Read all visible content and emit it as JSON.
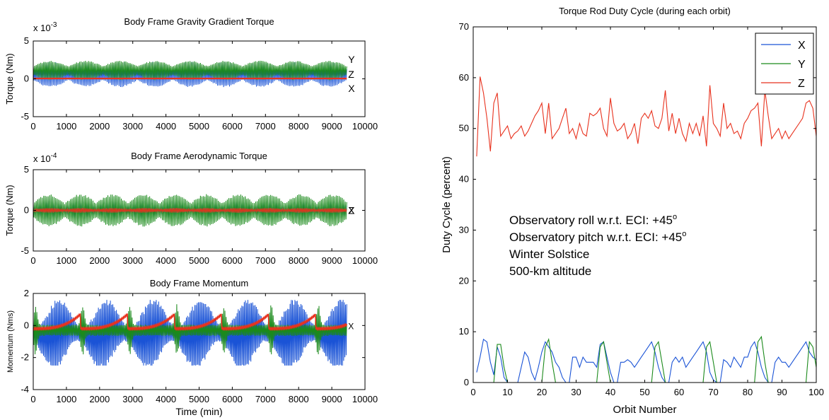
{
  "chart_data": [
    {
      "type": "line",
      "title": "Body Frame Gravity Gradient Torque",
      "ylabel": "Torque (Nm)",
      "xlabel": "",
      "exponent_base": "x 10",
      "exponent_power": "-3",
      "xlim": [
        0,
        10000
      ],
      "ylim": [
        -5,
        5
      ],
      "xticks": [
        0,
        1000,
        2000,
        3000,
        4000,
        5000,
        6000,
        7000,
        8000,
        9000,
        10000
      ],
      "yticks": [
        -5,
        0,
        5
      ],
      "end_labels": [
        "Y",
        "Z",
        "X"
      ],
      "x_end": 9450,
      "series": [
        {
          "label": "X",
          "color": "#1a53d6",
          "kind": "oscillation",
          "center": 0.6,
          "amp": 1.7,
          "period": 1050
        },
        {
          "label": "Y",
          "color": "#1b8a1b",
          "kind": "oscillation",
          "center": 1.1,
          "amp": 1.3,
          "period": 1050
        },
        {
          "label": "Z",
          "color": "#e8321e",
          "kind": "flat",
          "value": 0.05
        }
      ]
    },
    {
      "type": "line",
      "title": "Body Frame Aerodynamic Torque",
      "ylabel": "Torque (Nm)",
      "xlabel": "",
      "exponent_base": "x 10",
      "exponent_power": "-4",
      "xlim": [
        0,
        10000
      ],
      "ylim": [
        -5,
        5
      ],
      "xticks": [
        0,
        1000,
        2000,
        3000,
        4000,
        5000,
        6000,
        7000,
        8000,
        9000,
        10000
      ],
      "yticks": [
        -5,
        0,
        5
      ],
      "end_labels": [
        "X",
        "Z"
      ],
      "x_end": 9450,
      "series": [
        {
          "label": "X",
          "color": "#1a53d6",
          "kind": "oscillation",
          "center": 0.0,
          "amp": 1.2,
          "period": 950
        },
        {
          "label": "Y",
          "color": "#1b8a1b",
          "kind": "oscillation",
          "center": 0.0,
          "amp": 2.0,
          "period": 950
        },
        {
          "label": "Z",
          "color": "#e8321e",
          "kind": "oscillation",
          "center": 0.0,
          "amp": 0.3,
          "period": 950
        }
      ]
    },
    {
      "type": "line",
      "title": "Body Frame Momentum",
      "ylabel": "Momentum (Nms)",
      "xlabel": "Time (min)",
      "xlim": [
        0,
        10000
      ],
      "ylim": [
        -4,
        2
      ],
      "xticks": [
        0,
        1000,
        2000,
        3000,
        4000,
        5000,
        6000,
        7000,
        8000,
        9000,
        10000
      ],
      "yticks": [
        -4,
        -2,
        0,
        2
      ],
      "end_labels": [
        "X"
      ],
      "x_end": 9450,
      "series": [
        {
          "label": "X",
          "color": "#1a53d6",
          "kind": "momentum_x",
          "period": 1420
        },
        {
          "label": "Y",
          "color": "#1b8a1b",
          "kind": "momentum_y",
          "period": 1420
        },
        {
          "label": "Z",
          "color": "#e8321e",
          "kind": "momentum_z",
          "period": 1420
        }
      ]
    },
    {
      "type": "line",
      "title": "Torque Rod Duty Cycle (during each orbit)",
      "xlabel": "Orbit Number",
      "ylabel": "Duty Cycle (percent)",
      "xlim": [
        0,
        100
      ],
      "ylim": [
        0,
        70
      ],
      "xticks": [
        0,
        10,
        20,
        30,
        40,
        50,
        60,
        70,
        80,
        90,
        100
      ],
      "yticks": [
        0,
        10,
        20,
        30,
        40,
        50,
        60,
        70
      ],
      "legend": "top-right",
      "annotations": [
        {
          "text": "Observatory roll w.r.t. ECI: +45",
          "sup": "o"
        },
        {
          "text": "Observatory pitch w.r.t. ECI: +45",
          "sup": "o"
        },
        {
          "text": "Winter Solstice",
          "sup": ""
        },
        {
          "text": "500-km altitude",
          "sup": ""
        }
      ],
      "x": [
        1,
        2,
        3,
        4,
        5,
        6,
        7,
        8,
        9,
        10,
        11,
        12,
        13,
        14,
        15,
        16,
        17,
        18,
        19,
        20,
        21,
        22,
        23,
        24,
        25,
        26,
        27,
        28,
        29,
        30,
        31,
        32,
        33,
        34,
        35,
        36,
        37,
        38,
        39,
        40,
        41,
        42,
        43,
        44,
        45,
        46,
        47,
        48,
        49,
        50,
        51,
        52,
        53,
        54,
        55,
        56,
        57,
        58,
        59,
        60,
        61,
        62,
        63,
        64,
        65,
        66,
        67,
        68,
        69,
        70,
        71,
        72,
        73,
        74,
        75,
        76,
        77,
        78,
        79,
        80,
        81,
        82,
        83,
        84,
        85,
        86,
        87,
        88,
        89,
        90,
        91,
        92,
        93,
        94,
        95,
        96,
        97,
        98,
        99,
        100
      ],
      "series": [
        {
          "name": "X",
          "color": "#1a53d6",
          "values": [
            2,
            5,
            8.5,
            8,
            4,
            1.5,
            7,
            5,
            1,
            0,
            0,
            0,
            0,
            3,
            6,
            5,
            2,
            0.5,
            3,
            6,
            8,
            7,
            6,
            4,
            3,
            1,
            0,
            0,
            5,
            5,
            3,
            5,
            4,
            4,
            4,
            3,
            7.5,
            8,
            5,
            2,
            0,
            0,
            4,
            4,
            4.5,
            4,
            3,
            4,
            5,
            6,
            7,
            8,
            6,
            3,
            1,
            0,
            0,
            4,
            5,
            4,
            5,
            3,
            4,
            5,
            6,
            7,
            8,
            6,
            2,
            0.5,
            0,
            0,
            4.5,
            4,
            3,
            5,
            4,
            3,
            5,
            5,
            7,
            8,
            6,
            3,
            1,
            0,
            0,
            4,
            5,
            4,
            4,
            3,
            4,
            5,
            6,
            7,
            8,
            6,
            5,
            4.5
          ]
        },
        {
          "name": "Y",
          "color": "#1b8a1b",
          "values": [
            0,
            0,
            0,
            0,
            0,
            0,
            7.5,
            7.5,
            3,
            0,
            0,
            0,
            0,
            0,
            0,
            0,
            0,
            0,
            0,
            0,
            7,
            8.5,
            4,
            0,
            0,
            0,
            0,
            0,
            0,
            0,
            0,
            0,
            0,
            0,
            0,
            0,
            7,
            8,
            4,
            0,
            0,
            0,
            0,
            0,
            0,
            0,
            0,
            0,
            0,
            0,
            0,
            0,
            7,
            8,
            4,
            0,
            0,
            0,
            0,
            0,
            0,
            0,
            0,
            0,
            0,
            0,
            0,
            7,
            8,
            4,
            0,
            0,
            0,
            0,
            0,
            0,
            0,
            0,
            0,
            0,
            0,
            0,
            8,
            9,
            4,
            0,
            0,
            0,
            0,
            0,
            0,
            0,
            0,
            0,
            0,
            0,
            0,
            8,
            7,
            3
          ]
        },
        {
          "name": "Z",
          "color": "#e8321e",
          "values": [
            44.5,
            60.2,
            57,
            52,
            45.5,
            55,
            57,
            48.5,
            49.5,
            50.5,
            48,
            49,
            49.5,
            50.5,
            48.5,
            49.5,
            51,
            52.5,
            53.5,
            55,
            49,
            55,
            48,
            49,
            50,
            52,
            54,
            49,
            50,
            48,
            51,
            49,
            48.5,
            53,
            52.5,
            53,
            54,
            50,
            48.5,
            56,
            51,
            49.5,
            50,
            51,
            48,
            49,
            51,
            47,
            52,
            53,
            52,
            53.5,
            50.5,
            50,
            52,
            57.5,
            49.5,
            53,
            49,
            52,
            49,
            47.5,
            51,
            49,
            51,
            48.5,
            52.5,
            46.5,
            58.5,
            51,
            50,
            48.5,
            55,
            50,
            51,
            49,
            49.5,
            48,
            51,
            52,
            53.5,
            54,
            55,
            46.5,
            57.5,
            52.5,
            48,
            49,
            50,
            48,
            49.5,
            48,
            49,
            50,
            51,
            52,
            55,
            55.5,
            54,
            48.5
          ]
        }
      ]
    }
  ]
}
